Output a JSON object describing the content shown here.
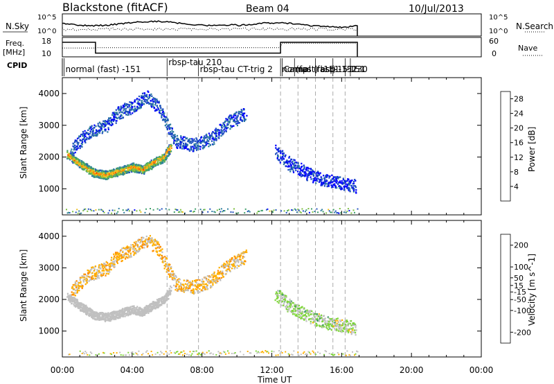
{
  "header": {
    "station": "Blackstone (fitACF)",
    "beam": "Beam 04",
    "date": "10/Jul/2013"
  },
  "panels": {
    "noise": {
      "left_label": "N.Sky",
      "right_label": "N.Search",
      "tick_top": "10^5",
      "tick_bottom": "10^0"
    },
    "freq": {
      "left_label_1": "Freq.",
      "left_label_2": "[MHz]",
      "right_label": "Nave",
      "left_ticks": [
        "18",
        "10"
      ],
      "right_ticks": [
        "60",
        "0"
      ]
    },
    "cpid": {
      "label": "CPID",
      "entries": [
        {
          "text": "normal (fast) -151",
          "t": 0.1
        },
        {
          "text": "rbsp-tau 210",
          "t": 6.0
        },
        {
          "text": "rbsp-tau CT-trig 2",
          "t": 7.8
        },
        {
          "text": "normal (fast) -151",
          "t": 12.5
        },
        {
          "text": "Camp",
          "t": 12.6
        },
        {
          "text": "(fast) -151",
          "t": 13.3
        },
        {
          "text": "rbsp",
          "t": 14.5
        },
        {
          "text": "-151",
          "t": 15.5
        },
        {
          "text": "-151",
          "t": 16.2
        },
        {
          "text": "230",
          "t": 16.5
        }
      ]
    }
  },
  "chart_data": [
    {
      "type": "heatmap",
      "title": "",
      "xlabel": "Time UT",
      "ylabel": "Slant Range [km]",
      "xlim": [
        0,
        24
      ],
      "ylim": [
        180,
        4500
      ],
      "x_ticks": [
        "00:00",
        "04:00",
        "08:00",
        "12:00",
        "16:00",
        "20:00",
        "00:00"
      ],
      "y_ticks": [
        1000,
        2000,
        3000,
        4000
      ],
      "data_end_hour": 16.9,
      "colorbar": {
        "label": "Power [dB]",
        "ticks": [
          4,
          8,
          12,
          16,
          20,
          24,
          28
        ],
        "range": [
          0,
          30
        ],
        "colors": [
          "#0000ff",
          "#1f4fbf",
          "#2e7ea0",
          "#3fa06a",
          "#7dbf3f",
          "#f0c020",
          "#ff8c00",
          "#ff4500",
          "#ff0000"
        ]
      },
      "series": [
        {
          "name": "",
          "feature": "strong scatter band",
          "points": [
            [
              0.3,
              2100
            ],
            [
              1.0,
              1800
            ],
            [
              1.8,
              1520
            ],
            [
              2.5,
              1450
            ],
            [
              3.2,
              1560
            ],
            [
              4.0,
              1700
            ],
            [
              4.6,
              1620
            ],
            [
              5.2,
              1830
            ],
            [
              5.8,
              2000
            ],
            [
              6.2,
              2350
            ]
          ],
          "level": 22
        },
        {
          "name": "",
          "feature": "upper echoes",
          "points": [
            [
              0.5,
              2250
            ],
            [
              1.5,
              2800
            ],
            [
              2.5,
              3000
            ],
            [
              3.2,
              3400
            ],
            [
              4.0,
              3600
            ],
            [
              4.8,
              3900
            ],
            [
              5.5,
              3600
            ],
            [
              6.5,
              2500
            ],
            [
              7.5,
              2400
            ],
            [
              8.5,
              2600
            ],
            [
              9.5,
              3100
            ],
            [
              10.5,
              3400
            ]
          ],
          "level": 9
        },
        {
          "name": "",
          "feature": "late weak echoes",
          "points": [
            [
              12.2,
              2200
            ],
            [
              13.0,
              1800
            ],
            [
              14.0,
              1500
            ],
            [
              15.0,
              1300
            ],
            [
              16.0,
              1200
            ],
            [
              16.8,
              1100
            ]
          ],
          "level": 7
        }
      ]
    },
    {
      "type": "heatmap",
      "title": "",
      "xlabel": "Time UT",
      "ylabel": "Slant Range [km]",
      "xlim": [
        0,
        24
      ],
      "ylim": [
        180,
        4500
      ],
      "x_ticks": [
        "00:00",
        "04:00",
        "08:00",
        "12:00",
        "16:00",
        "20:00",
        "00:00"
      ],
      "y_ticks": [
        1000,
        2000,
        3000,
        4000
      ],
      "data_end_hour": 16.9,
      "colorbar": {
        "label": "Velocity [m s^-1]",
        "ticks": [
          200,
          100,
          50,
          15,
          -15,
          -50,
          -100,
          -200
        ],
        "range": [
          -250,
          250
        ],
        "colors": [
          "#ff0000",
          "#ff4500",
          "#ff8c00",
          "#ffb000",
          "#c0c0c0",
          "#7fd63a",
          "#3a9a60",
          "#2c5faa",
          "#1a2a8c"
        ]
      },
      "series": [
        {
          "name": "",
          "feature": "ground scatter",
          "points": [
            [
              0.3,
              2100
            ],
            [
              1.0,
              1800
            ],
            [
              1.8,
              1520
            ],
            [
              2.5,
              1450
            ],
            [
              3.2,
              1560
            ],
            [
              4.0,
              1700
            ],
            [
              4.6,
              1620
            ],
            [
              5.2,
              1830
            ],
            [
              5.8,
              2000
            ],
            [
              6.2,
              2350
            ]
          ],
          "level": 0
        },
        {
          "name": "",
          "feature": "upper echoes",
          "points": [
            [
              0.5,
              2250
            ],
            [
              1.5,
              2800
            ],
            [
              2.5,
              3000
            ],
            [
              3.2,
              3400
            ],
            [
              4.0,
              3600
            ],
            [
              4.8,
              3900
            ],
            [
              5.5,
              3600
            ],
            [
              6.5,
              2500
            ],
            [
              7.5,
              2400
            ],
            [
              8.5,
              2600
            ],
            [
              9.5,
              3100
            ],
            [
              10.5,
              3400
            ]
          ],
          "level": -40
        },
        {
          "name": "",
          "feature": "late weak echoes",
          "points": [
            [
              12.2,
              2200
            ],
            [
              13.0,
              1800
            ],
            [
              14.0,
              1500
            ],
            [
              15.0,
              1300
            ],
            [
              16.0,
              1200
            ],
            [
              16.8,
              1100
            ]
          ],
          "level": 30
        }
      ]
    }
  ],
  "vertical_dashed_lines_hours": [
    6.0,
    7.8,
    12.5,
    13.5,
    14.5,
    15.5,
    16.2
  ]
}
